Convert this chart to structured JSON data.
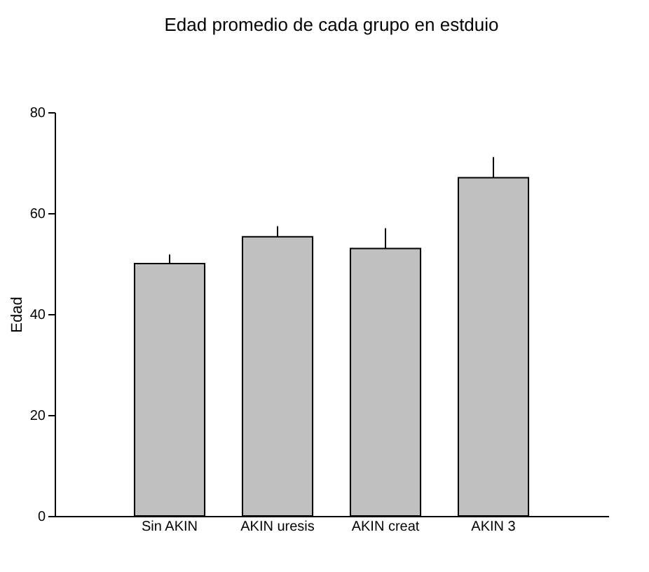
{
  "chart_data": {
    "type": "bar",
    "title": "Edad promedio de cada grupo en estduio",
    "ylabel": "Edad",
    "categories": [
      "Sin AKIN",
      "AKIN uresis",
      "AKIN creat",
      "AKIN 3"
    ],
    "values": [
      50,
      55.3,
      53,
      67
    ],
    "errors": [
      1.7,
      2,
      3.9,
      4
    ],
    "color": "#c0c0c0",
    "ylim": [
      0,
      80
    ],
    "yticks": [
      0,
      20,
      40,
      60,
      80
    ],
    "grid": false
  }
}
